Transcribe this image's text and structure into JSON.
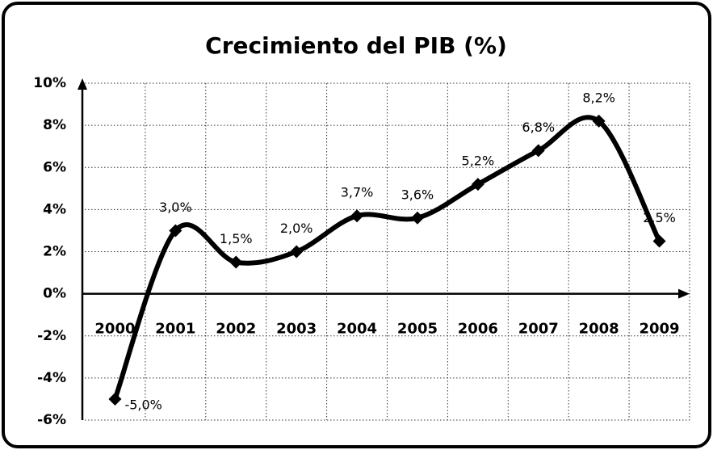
{
  "chart_data": {
    "type": "line",
    "title": "Crecimiento del PIB (%)",
    "categories": [
      "2000",
      "2001",
      "2002",
      "2003",
      "2004",
      "2005",
      "2006",
      "2007",
      "2008",
      "2009"
    ],
    "values": [
      -5.0,
      3.0,
      1.5,
      2.0,
      3.7,
      3.6,
      5.2,
      6.8,
      8.2,
      2.5
    ],
    "value_labels": [
      "-5,0%",
      "3,0%",
      "1,5%",
      "2,0%",
      "3,7%",
      "3,6%",
      "5,2%",
      "6,8%",
      "8,2%",
      "2,5%"
    ],
    "color": "#000000",
    "ylim": [
      -6,
      10
    ],
    "yticks": [
      {
        "value": -6,
        "label": "-6%"
      },
      {
        "value": -4,
        "label": "-4%"
      },
      {
        "value": -2,
        "label": "-2%"
      },
      {
        "value": 0,
        "label": "0%"
      },
      {
        "value": 2,
        "label": "2%"
      },
      {
        "value": 4,
        "label": "4%"
      },
      {
        "value": 6,
        "label": "6%"
      },
      {
        "value": 8,
        "label": "8%"
      },
      {
        "value": 10,
        "label": "10%"
      }
    ],
    "grid": true,
    "smooth": true
  }
}
